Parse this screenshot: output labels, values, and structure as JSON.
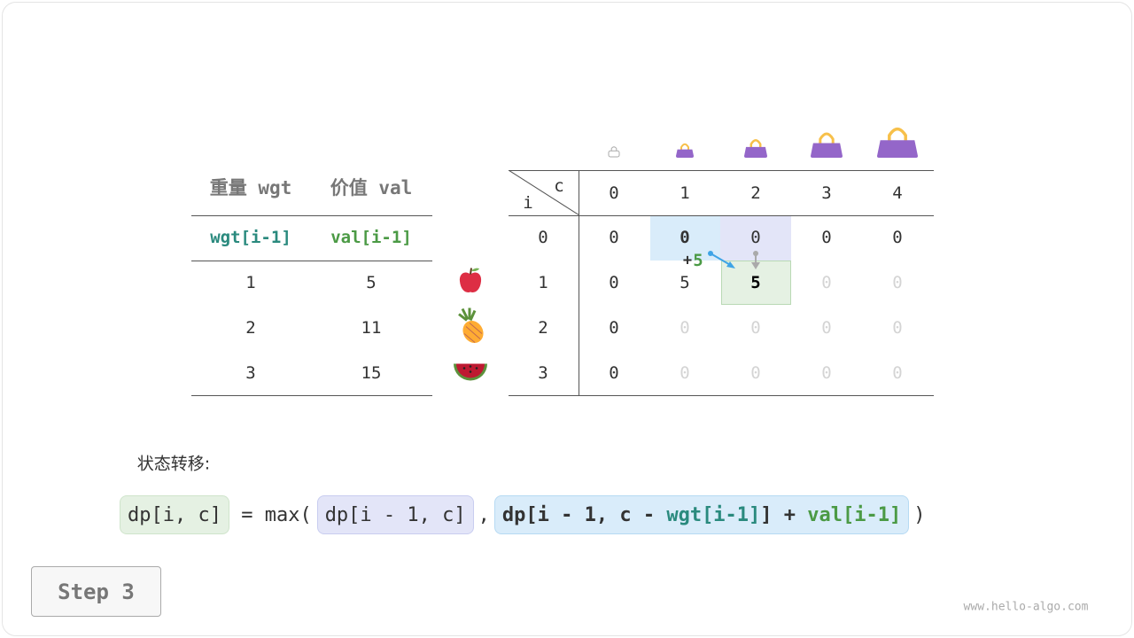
{
  "items_table": {
    "headers": [
      "重量 wgt",
      "价值 val"
    ],
    "subheaders": [
      "wgt[i-1]",
      "val[i-1]"
    ],
    "rows": [
      [
        "1",
        "5"
      ],
      [
        "2",
        "11"
      ],
      [
        "3",
        "15"
      ]
    ],
    "item_icons": [
      "apple-icon",
      "pineapple-icon",
      "watermelon-icon"
    ]
  },
  "dp_table": {
    "corner_c": "c",
    "corner_i": "i",
    "col_headers": [
      "0",
      "1",
      "2",
      "3",
      "4"
    ],
    "row_headers": [
      "0",
      "1",
      "2",
      "3"
    ],
    "rows": [
      [
        "0",
        "0",
        "0",
        "0",
        "0"
      ],
      [
        "0",
        "5",
        "5",
        "0",
        "0"
      ],
      [
        "0",
        "0",
        "0",
        "0",
        "0"
      ],
      [
        "0",
        "0",
        "0",
        "0",
        "0"
      ]
    ],
    "filled": [
      [
        true,
        true,
        true,
        true,
        true
      ],
      [
        true,
        true,
        true,
        false,
        false
      ],
      [
        true,
        false,
        false,
        false,
        false
      ],
      [
        true,
        false,
        false,
        false,
        false
      ]
    ],
    "bag_icons": [
      "bag-capacity-0",
      "bag-capacity-1",
      "bag-capacity-2",
      "bag-capacity-3",
      "bag-capacity-4"
    ],
    "annotation_plus": "+",
    "annotation_value": "5"
  },
  "colors": {
    "blue": "#d9ecfa",
    "purple": "#e3e5f8",
    "green": "#e5f1e3",
    "teal": "#2a8a7e",
    "green_text": "#4b9a45",
    "bag": "#9466c9",
    "handle": "#f7c04a"
  },
  "formula": {
    "label": "状态转移:",
    "lhs": "dp[i, c]",
    "eq": " = max(",
    "a": "dp[i - 1, c]",
    "comma": ",",
    "b1": "dp[i - 1, c - ",
    "b_wgt": "wgt[i-1]",
    "b2": "] + ",
    "b_val": "val[i-1]",
    "close": ")"
  },
  "step_label": "Step 3",
  "watermark": "www.hello-algo.com"
}
